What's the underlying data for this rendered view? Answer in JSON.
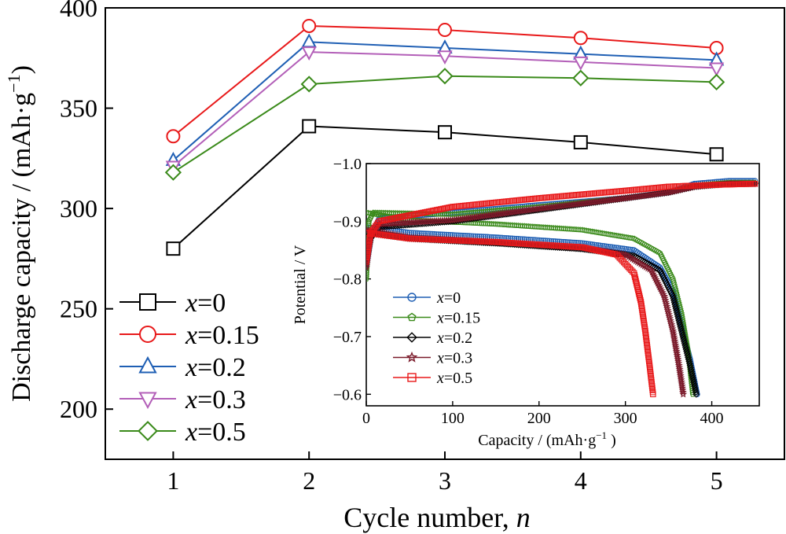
{
  "chart_data": [
    {
      "type": "line",
      "xlabel_text": "Cycle number, ",
      "xlabel_var": "n",
      "ylabel_text": "Discharge capacity / (mAh·g",
      "ylabel_exp": "−1",
      "ylabel_close": ")",
      "xlim": [
        0.5,
        5.5
      ],
      "ylim": [
        175,
        400
      ],
      "xticks": [
        1,
        2,
        3,
        4,
        5
      ],
      "yticks": [
        200,
        250,
        300,
        350,
        400
      ],
      "legend_position": "bottom-left",
      "x": [
        1,
        2,
        3,
        4,
        5
      ],
      "series": [
        {
          "name_var": "x",
          "name_val": "=0",
          "marker": "square",
          "color": "#000000",
          "values": [
            280,
            341,
            338,
            333,
            327
          ]
        },
        {
          "name_var": "x",
          "name_val": "=0.15",
          "marker": "circle",
          "color": "#e8191a",
          "values": [
            336,
            391,
            389,
            385,
            380
          ]
        },
        {
          "name_var": "x",
          "name_val": "=0.2",
          "marker": "triangle-up",
          "color": "#1f5fb4",
          "values": [
            324,
            383,
            380,
            377,
            374
          ]
        },
        {
          "name_var": "x",
          "name_val": "=0.3",
          "marker": "triangle-down",
          "color": "#b35fb8",
          "values": [
            321,
            378,
            376,
            373,
            370
          ]
        },
        {
          "name_var": "x",
          "name_val": "=0.5",
          "marker": "diamond",
          "color": "#3a8a1a",
          "values": [
            318,
            362,
            366,
            365,
            363
          ]
        }
      ]
    },
    {
      "type": "scatter",
      "position": "inset-lower-right",
      "xlabel_text": "Capacity / (mAh·g",
      "xlabel_exp": "−1",
      "xlabel_close": " )",
      "ylabel": "Potential / V",
      "xlim": [
        0,
        455
      ],
      "ylim": [
        -1.0,
        -0.58
      ],
      "xticks": [
        0,
        100,
        200,
        300,
        400
      ],
      "yticks": [
        -1.0,
        -0.9,
        -0.8,
        -0.7,
        -0.6
      ],
      "ytick_labels": [
        "−1.0",
        "−0.9",
        "−0.8",
        "−0.7",
        "−0.6"
      ],
      "legend_position": "bottom-left",
      "series": [
        {
          "name_var": "x",
          "name_val": "=0",
          "marker": "circle",
          "color": "#1f5fb4",
          "charge": [
            [
              0,
              -0.82
            ],
            [
              5,
              -0.87
            ],
            [
              15,
              -0.905
            ],
            [
              100,
              -0.915
            ],
            [
              200,
              -0.928
            ],
            [
              300,
              -0.94
            ],
            [
              350,
              -0.95
            ],
            [
              380,
              -0.965
            ],
            [
              420,
              -0.97
            ],
            [
              450,
              -0.97
            ]
          ],
          "discharge": [
            [
              0,
              -0.89
            ],
            [
              50,
              -0.88
            ],
            [
              150,
              -0.872
            ],
            [
              250,
              -0.862
            ],
            [
              310,
              -0.85
            ],
            [
              340,
              -0.82
            ],
            [
              355,
              -0.78
            ],
            [
              365,
              -0.72
            ],
            [
              375,
              -0.66
            ],
            [
              383,
              -0.6
            ]
          ]
        },
        {
          "name_var": "x",
          "name_val": "=0.15",
          "marker": "pentagon",
          "color": "#3a8a1a",
          "charge": [
            [
              0,
              -0.8
            ],
            [
              3,
              -0.9
            ],
            [
              8,
              -0.915
            ],
            [
              100,
              -0.912
            ],
            [
              200,
              -0.925
            ],
            [
              300,
              -0.94
            ],
            [
              350,
              -0.95
            ],
            [
              380,
              -0.962
            ],
            [
              420,
              -0.967
            ],
            [
              450,
              -0.967
            ]
          ],
          "discharge": [
            [
              0,
              -0.915
            ],
            [
              50,
              -0.902
            ],
            [
              150,
              -0.895
            ],
            [
              250,
              -0.885
            ],
            [
              310,
              -0.87
            ],
            [
              340,
              -0.845
            ],
            [
              355,
              -0.8
            ],
            [
              365,
              -0.74
            ],
            [
              373,
              -0.67
            ],
            [
              378,
              -0.6
            ]
          ]
        },
        {
          "name_var": "x",
          "name_val": "=0.2",
          "marker": "diamond",
          "color": "#000000",
          "charge": [
            [
              0,
              -0.83
            ],
            [
              5,
              -0.87
            ],
            [
              15,
              -0.89
            ],
            [
              100,
              -0.9
            ],
            [
              200,
              -0.92
            ],
            [
              300,
              -0.94
            ],
            [
              350,
              -0.95
            ],
            [
              380,
              -0.96
            ],
            [
              420,
              -0.965
            ],
            [
              450,
              -0.965
            ]
          ],
          "discharge": [
            [
              0,
              -0.88
            ],
            [
              50,
              -0.87
            ],
            [
              150,
              -0.862
            ],
            [
              250,
              -0.852
            ],
            [
              310,
              -0.84
            ],
            [
              340,
              -0.815
            ],
            [
              355,
              -0.77
            ],
            [
              365,
              -0.71
            ],
            [
              375,
              -0.65
            ],
            [
              382,
              -0.6
            ]
          ]
        },
        {
          "name_var": "x",
          "name_val": "=0.3",
          "marker": "star",
          "color": "#7a1a2a",
          "charge": [
            [
              0,
              -0.82
            ],
            [
              5,
              -0.875
            ],
            [
              15,
              -0.895
            ],
            [
              100,
              -0.902
            ],
            [
              200,
              -0.922
            ],
            [
              300,
              -0.94
            ],
            [
              350,
              -0.95
            ],
            [
              380,
              -0.96
            ],
            [
              420,
              -0.965
            ],
            [
              450,
              -0.965
            ]
          ],
          "discharge": [
            [
              0,
              -0.885
            ],
            [
              50,
              -0.872
            ],
            [
              150,
              -0.864
            ],
            [
              250,
              -0.854
            ],
            [
              300,
              -0.842
            ],
            [
              330,
              -0.815
            ],
            [
              345,
              -0.77
            ],
            [
              355,
              -0.71
            ],
            [
              362,
              -0.65
            ],
            [
              367,
              -0.6
            ]
          ]
        },
        {
          "name_var": "x",
          "name_val": "=0.5",
          "marker": "square",
          "color": "#e8191a",
          "charge": [
            [
              0,
              -0.83
            ],
            [
              5,
              -0.88
            ],
            [
              15,
              -0.9
            ],
            [
              100,
              -0.925
            ],
            [
              200,
              -0.94
            ],
            [
              300,
              -0.953
            ],
            [
              350,
              -0.96
            ],
            [
              400,
              -0.963
            ],
            [
              450,
              -0.965
            ]
          ],
          "discharge": [
            [
              0,
              -0.88
            ],
            [
              50,
              -0.87
            ],
            [
              150,
              -0.864
            ],
            [
              250,
              -0.855
            ],
            [
              290,
              -0.842
            ],
            [
              310,
              -0.81
            ],
            [
              318,
              -0.76
            ],
            [
              323,
              -0.71
            ],
            [
              328,
              -0.65
            ],
            [
              332,
              -0.6
            ]
          ]
        }
      ]
    }
  ]
}
